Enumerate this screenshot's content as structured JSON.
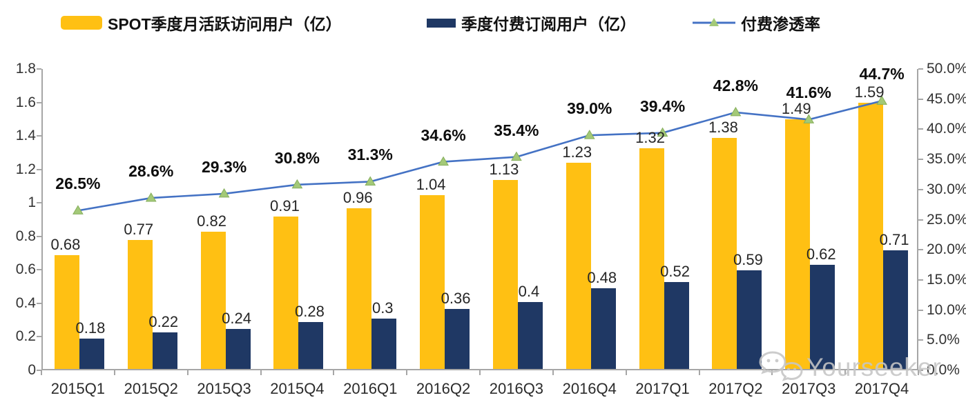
{
  "legend": {
    "items": [
      {
        "label": "SPOT季度月活跃访问用户（亿）",
        "swatch": "bar",
        "color": "#FFC013"
      },
      {
        "label": "季度付费订阅用户（亿）",
        "swatch": "bar",
        "color": "#1F3864"
      },
      {
        "label": "付费渗透率",
        "swatch": "line",
        "color": "#4472C4",
        "marker_color": "#A3C978"
      }
    ]
  },
  "watermark": {
    "text": "Yourseeker",
    "icon": "wechat-icon"
  },
  "chart_data": {
    "type": "bar",
    "subtype": "bar+line combo, dual axis",
    "title": "",
    "categories": [
      "2015Q1",
      "2015Q2",
      "2015Q3",
      "2015Q4",
      "2016Q1",
      "2016Q2",
      "2016Q3",
      "2016Q4",
      "2017Q1",
      "2017Q2",
      "2017Q3",
      "2017Q4"
    ],
    "series": [
      {
        "name": "SPOT季度月活跃访问用户（亿）",
        "type": "bar",
        "axis": "left",
        "color": "#FFC013",
        "values": [
          0.68,
          0.77,
          0.82,
          0.91,
          0.96,
          1.04,
          1.13,
          1.23,
          1.32,
          1.38,
          1.49,
          1.59
        ],
        "labels": [
          "0.68",
          "0.77",
          "0.82",
          "0.91",
          "0.96",
          "1.04",
          "1.13",
          "1.23",
          "1.32",
          "1.38",
          "1.49",
          "1.59"
        ]
      },
      {
        "name": "季度付费订阅用户（亿）",
        "type": "bar",
        "axis": "left",
        "color": "#1F3864",
        "values": [
          0.18,
          0.22,
          0.24,
          0.28,
          0.3,
          0.36,
          0.4,
          0.48,
          0.52,
          0.59,
          0.62,
          0.71
        ],
        "labels": [
          "0.18",
          "0.22",
          "0.24",
          "0.28",
          "0.3",
          "0.36",
          "0.4",
          "0.48",
          "0.52",
          "0.59",
          "0.62",
          "0.71"
        ]
      },
      {
        "name": "付费渗透率",
        "type": "line",
        "axis": "right",
        "color": "#4472C4",
        "marker": "triangle",
        "marker_color": "#A3C978",
        "marker_stroke": "#86AE5C",
        "values": [
          26.5,
          28.6,
          29.3,
          30.8,
          31.3,
          34.6,
          35.4,
          39.0,
          39.4,
          42.8,
          41.6,
          44.7
        ],
        "labels": [
          "26.5%",
          "28.6%",
          "29.3%",
          "30.8%",
          "31.3%",
          "34.6%",
          "35.4%",
          "39.0%",
          "39.4%",
          "42.8%",
          "41.6%",
          "44.7%"
        ]
      }
    ],
    "left_axis": {
      "min": 0,
      "max": 1.8,
      "step": 0.2,
      "ticks": [
        "1.8",
        "1.6",
        "1.4",
        "1.2",
        "1",
        "0.8",
        "0.6",
        "0.4",
        "0.2",
        "0"
      ]
    },
    "right_axis": {
      "min": 0,
      "max": 50,
      "step": 5,
      "ticks": [
        "50.0%",
        "45.0%",
        "40.0%",
        "35.0%",
        "30.0%",
        "25.0%",
        "20.0%",
        "15.0%",
        "10.0%",
        "5.0%",
        "0.0%"
      ]
    },
    "grid": false,
    "legend_position": "top",
    "axis_color": "#A6A6A6"
  }
}
